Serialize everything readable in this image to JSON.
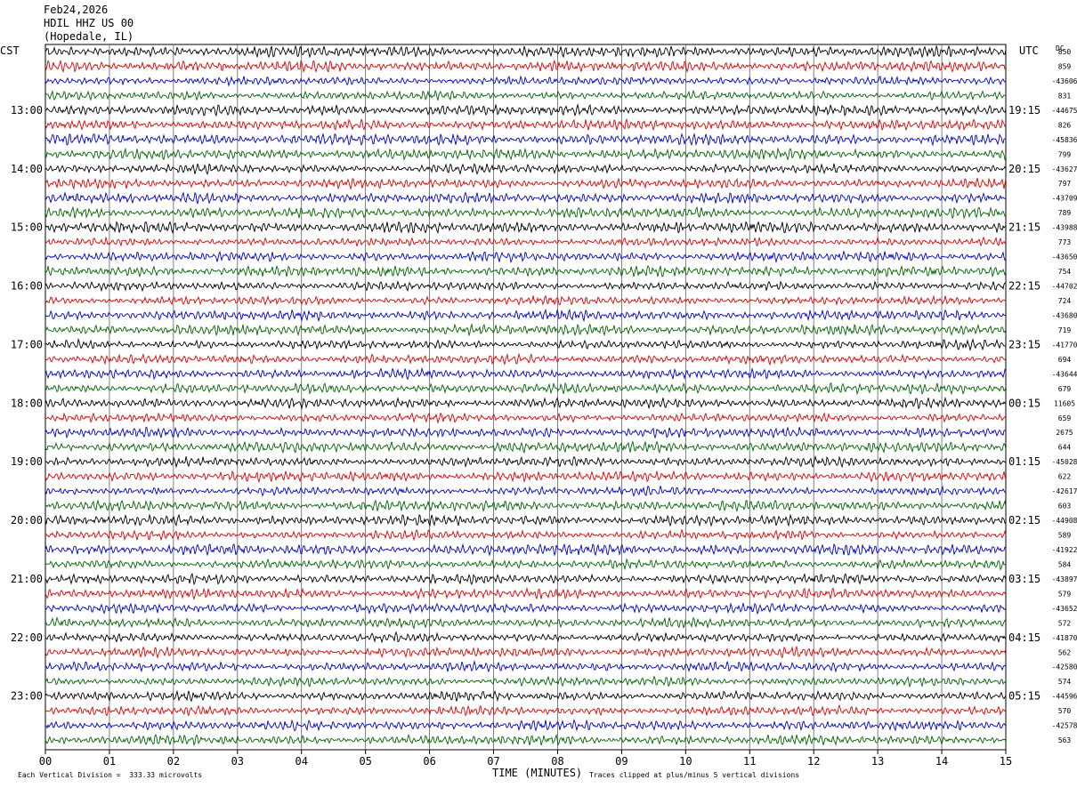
{
  "header": {
    "date": "Feb24,2026",
    "station": "HDIL HHZ US 00",
    "location": "(Hopedale, IL)"
  },
  "left_timezone": "CST",
  "right_timezone": "UTC",
  "dc_label": "DC",
  "footer": {
    "scale_note": "Each Vertical Division =  333.33 microvolts",
    "xlabel": "TIME (MINUTES)",
    "clip_note": "Traces clipped at plus/minus 5 vertical divisions"
  },
  "colors": {
    "black": "#000000",
    "red": "#e00000",
    "blue": "#0000d0",
    "green": "#006400",
    "grid": "#606060"
  },
  "chart_data": {
    "type": "line",
    "title": "HDIL HHZ US 00 (Hopedale, IL) Feb24,2026",
    "xlabel": "TIME (MINUTES)",
    "xlim": [
      0,
      15
    ],
    "x_ticks": [
      "00",
      "01",
      "02",
      "03",
      "04",
      "05",
      "06",
      "07",
      "08",
      "09",
      "10",
      "11",
      "12",
      "13",
      "14",
      "15"
    ],
    "trace_count": 48,
    "trace_colors_cycle": [
      "black",
      "red",
      "blue",
      "green"
    ],
    "left_hour_labels": [
      "13:00",
      "14:00",
      "15:00",
      "16:00",
      "17:00",
      "18:00",
      "19:00",
      "20:00",
      "21:00",
      "22:00",
      "23:00"
    ],
    "right_hour_labels": [
      "19:15",
      "20:15",
      "21:15",
      "22:15",
      "23:15",
      "00:15",
      "01:15",
      "02:15",
      "03:15",
      "04:15",
      "05:15"
    ],
    "dc_offsets": [
      "850",
      "859",
      "-43606",
      "831",
      "-44675",
      "826",
      "-45836",
      "799",
      "-43627",
      "797",
      "-43709",
      "789",
      "-43988",
      "773",
      "-43650",
      "754",
      "-44702",
      "724",
      "-43680",
      "719",
      "-41770",
      "694",
      "-43644",
      "679",
      "11605",
      "659",
      "2675",
      "644",
      "-45028",
      "622",
      "-42617",
      "603",
      "-44908",
      "589",
      "-41922",
      "584",
      "-43897",
      "579",
      "-43652",
      "572",
      "-41870",
      "562",
      "-42580",
      "574",
      "-44596",
      "570",
      "-42578",
      "563"
    ],
    "clip_divisions": 5,
    "microvolts_per_division": 333.33,
    "grid": true
  }
}
